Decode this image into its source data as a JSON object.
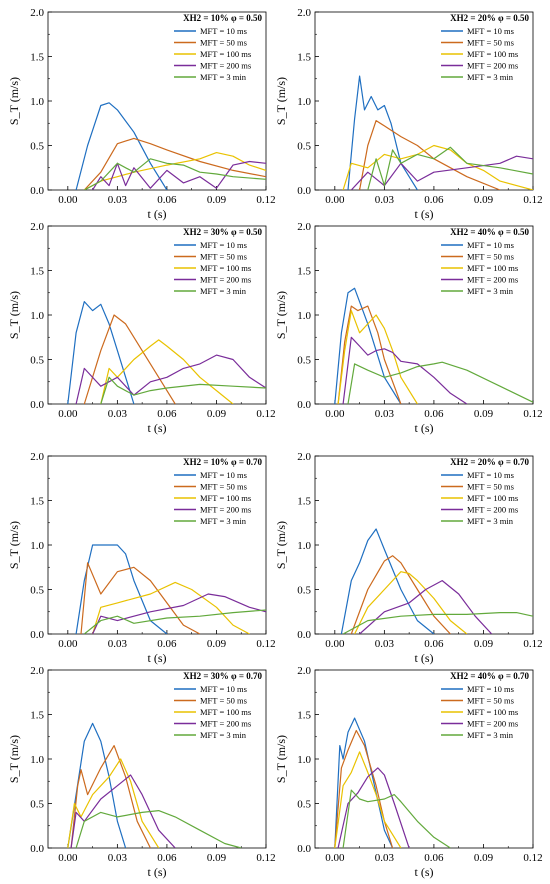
{
  "figure": {
    "xlabel": "t (s)",
    "ylabel": "S_T (m/s)",
    "xticks": [
      "0.00",
      "0.03",
      "0.06",
      "0.09",
      "0.12"
    ],
    "yticks": [
      "0.0",
      "0.5",
      "1.0",
      "1.5",
      "2.0"
    ],
    "legend_labels": [
      "MFT = 10 ms",
      "MFT = 50 ms",
      "MFT = 100 ms",
      "MFT = 200 ms",
      "MFT = 3 min"
    ],
    "colors": [
      "#1f6fc1",
      "#cc6a1e",
      "#e9c200",
      "#7a2d9a",
      "#62a93c"
    ]
  },
  "chart_data": [
    {
      "type": "line",
      "title": "XH2 = 10%   φ = 0.50",
      "xlim": [
        -0.012,
        0.12
      ],
      "ylim": [
        0,
        2
      ],
      "series": [
        {
          "name": "MFT = 10 ms",
          "x": [
            0.005,
            0.012,
            0.02,
            0.025,
            0.03,
            0.04,
            0.05,
            0.06
          ],
          "y": [
            0,
            0.5,
            0.95,
            0.98,
            0.9,
            0.65,
            0.3,
            0.0
          ]
        },
        {
          "name": "MFT = 50 ms",
          "x": [
            0.01,
            0.02,
            0.03,
            0.04,
            0.05,
            0.06,
            0.08,
            0.1,
            0.12
          ],
          "y": [
            0,
            0.2,
            0.52,
            0.58,
            0.52,
            0.45,
            0.32,
            0.22,
            0.15
          ]
        },
        {
          "name": "MFT = 100 ms",
          "x": [
            0.01,
            0.02,
            0.03,
            0.04,
            0.06,
            0.08,
            0.09,
            0.1,
            0.11,
            0.12
          ],
          "y": [
            0,
            0.1,
            0.15,
            0.2,
            0.28,
            0.35,
            0.42,
            0.38,
            0.28,
            0.22
          ]
        },
        {
          "name": "MFT = 200 ms",
          "x": [
            0.015,
            0.02,
            0.025,
            0.03,
            0.035,
            0.04,
            0.05,
            0.06,
            0.07,
            0.08,
            0.09,
            0.1,
            0.11,
            0.12
          ],
          "y": [
            0,
            0.15,
            0.05,
            0.3,
            0.05,
            0.25,
            0.02,
            0.22,
            0.08,
            0.15,
            0.02,
            0.28,
            0.32,
            0.3
          ]
        },
        {
          "name": "MFT = 3 min",
          "x": [
            0.01,
            0.02,
            0.03,
            0.04,
            0.05,
            0.06,
            0.07,
            0.08,
            0.09,
            0.1,
            0.12
          ],
          "y": [
            0,
            0.1,
            0.3,
            0.2,
            0.35,
            0.3,
            0.28,
            0.2,
            0.18,
            0.15,
            0.12
          ]
        }
      ]
    },
    {
      "type": "line",
      "title": "XH2 = 20%   φ = 0.50",
      "xlim": [
        -0.012,
        0.12
      ],
      "ylim": [
        0,
        2
      ],
      "series": [
        {
          "name": "MFT = 10 ms",
          "x": [
            0.008,
            0.012,
            0.015,
            0.018,
            0.022,
            0.026,
            0.03,
            0.034,
            0.04,
            0.05
          ],
          "y": [
            0,
            0.8,
            1.28,
            0.9,
            1.05,
            0.9,
            0.95,
            0.75,
            0.3,
            0.0
          ]
        },
        {
          "name": "MFT = 50 ms",
          "x": [
            0.015,
            0.02,
            0.025,
            0.03,
            0.04,
            0.05,
            0.06,
            0.08,
            0.1
          ],
          "y": [
            0,
            0.5,
            0.78,
            0.72,
            0.6,
            0.5,
            0.35,
            0.15,
            0.0
          ]
        },
        {
          "name": "MFT = 100 ms",
          "x": [
            0.005,
            0.01,
            0.02,
            0.03,
            0.04,
            0.05,
            0.06,
            0.07,
            0.08,
            0.09,
            0.1,
            0.12
          ],
          "y": [
            0,
            0.3,
            0.25,
            0.4,
            0.35,
            0.4,
            0.5,
            0.45,
            0.3,
            0.22,
            0.1,
            0.0
          ]
        },
        {
          "name": "MFT = 200 ms",
          "x": [
            0.01,
            0.02,
            0.03,
            0.04,
            0.05,
            0.06,
            0.08,
            0.1,
            0.11,
            0.12
          ],
          "y": [
            0,
            0.2,
            0.05,
            0.3,
            0.1,
            0.2,
            0.25,
            0.3,
            0.38,
            0.35
          ]
        },
        {
          "name": "MFT = 3 min",
          "x": [
            0.02,
            0.025,
            0.03,
            0.035,
            0.04,
            0.05,
            0.06,
            0.07,
            0.08,
            0.1,
            0.12
          ],
          "y": [
            0,
            0.35,
            0.05,
            0.45,
            0.3,
            0.4,
            0.35,
            0.48,
            0.3,
            0.25,
            0.18
          ]
        }
      ]
    },
    {
      "type": "line",
      "title": "XH2 = 30%   φ = 0.50",
      "xlim": [
        -0.012,
        0.12
      ],
      "ylim": [
        0,
        2
      ],
      "series": [
        {
          "name": "MFT = 10 ms",
          "x": [
            0.0,
            0.005,
            0.01,
            0.015,
            0.02,
            0.025,
            0.03,
            0.04
          ],
          "y": [
            0,
            0.8,
            1.15,
            1.05,
            1.12,
            0.9,
            0.6,
            0.0
          ]
        },
        {
          "name": "MFT = 50 ms",
          "x": [
            0.01,
            0.02,
            0.028,
            0.035,
            0.045,
            0.055,
            0.065
          ],
          "y": [
            0,
            0.6,
            1.0,
            0.9,
            0.6,
            0.3,
            0.0
          ]
        },
        {
          "name": "MFT = 100 ms",
          "x": [
            0.02,
            0.025,
            0.03,
            0.04,
            0.05,
            0.055,
            0.06,
            0.07,
            0.08,
            0.09,
            0.1
          ],
          "y": [
            0,
            0.4,
            0.3,
            0.5,
            0.65,
            0.72,
            0.65,
            0.5,
            0.3,
            0.15,
            0.0
          ]
        },
        {
          "name": "MFT = 200 ms",
          "x": [
            0.005,
            0.01,
            0.02,
            0.03,
            0.04,
            0.05,
            0.06,
            0.07,
            0.08,
            0.09,
            0.1,
            0.11,
            0.12
          ],
          "y": [
            0,
            0.4,
            0.2,
            0.3,
            0.1,
            0.25,
            0.3,
            0.4,
            0.45,
            0.55,
            0.5,
            0.3,
            0.18
          ]
        },
        {
          "name": "MFT = 3 min",
          "x": [
            0.02,
            0.025,
            0.03,
            0.04,
            0.05,
            0.06,
            0.08,
            0.1,
            0.12
          ],
          "y": [
            0,
            0.3,
            0.2,
            0.1,
            0.15,
            0.18,
            0.22,
            0.2,
            0.18
          ]
        }
      ]
    },
    {
      "type": "line",
      "title": "XH2 = 40%   φ = 0.50",
      "xlim": [
        -0.012,
        0.12
      ],
      "ylim": [
        0,
        2
      ],
      "series": [
        {
          "name": "MFT = 10 ms",
          "x": [
            0.0,
            0.004,
            0.008,
            0.012,
            0.016,
            0.02,
            0.025,
            0.03,
            0.04
          ],
          "y": [
            0,
            0.8,
            1.25,
            1.3,
            1.1,
            0.9,
            0.6,
            0.3,
            0.0
          ]
        },
        {
          "name": "MFT = 50 ms",
          "x": [
            0.002,
            0.006,
            0.01,
            0.014,
            0.02,
            0.026,
            0.03,
            0.04
          ],
          "y": [
            0,
            0.7,
            1.1,
            1.05,
            1.1,
            0.8,
            0.5,
            0.0
          ]
        },
        {
          "name": "MFT = 100 ms",
          "x": [
            0.002,
            0.006,
            0.01,
            0.015,
            0.02,
            0.025,
            0.03,
            0.035,
            0.04,
            0.05
          ],
          "y": [
            0,
            0.6,
            1.05,
            0.8,
            0.9,
            1.0,
            0.85,
            0.6,
            0.3,
            0.0
          ]
        },
        {
          "name": "MFT = 200 ms",
          "x": [
            0.005,
            0.01,
            0.015,
            0.02,
            0.025,
            0.03,
            0.035,
            0.04,
            0.05,
            0.06,
            0.07,
            0.08
          ],
          "y": [
            0,
            0.75,
            0.65,
            0.55,
            0.6,
            0.62,
            0.58,
            0.48,
            0.45,
            0.3,
            0.12,
            0.0
          ]
        },
        {
          "name": "MFT = 3 min",
          "x": [
            0.008,
            0.012,
            0.02,
            0.03,
            0.04,
            0.05,
            0.06,
            0.065,
            0.08,
            0.1,
            0.12
          ],
          "y": [
            0,
            0.45,
            0.38,
            0.3,
            0.35,
            0.42,
            0.45,
            0.47,
            0.38,
            0.2,
            0.02
          ]
        }
      ]
    },
    {
      "type": "line",
      "title": "XH2 = 10%   φ = 0.70",
      "xlim": [
        -0.012,
        0.12
      ],
      "ylim": [
        0,
        2
      ],
      "series": [
        {
          "name": "MFT = 10 ms",
          "x": [
            0.005,
            0.01,
            0.015,
            0.02,
            0.03,
            0.035,
            0.04,
            0.05,
            0.06
          ],
          "y": [
            0,
            0.6,
            1.0,
            1.0,
            1.0,
            0.9,
            0.6,
            0.15,
            0.0
          ]
        },
        {
          "name": "MFT = 50 ms",
          "x": [
            0.008,
            0.012,
            0.02,
            0.03,
            0.04,
            0.05,
            0.06,
            0.07,
            0.08
          ],
          "y": [
            0,
            0.8,
            0.45,
            0.7,
            0.75,
            0.6,
            0.35,
            0.1,
            0.0
          ]
        },
        {
          "name": "MFT = 100 ms",
          "x": [
            0.015,
            0.02,
            0.03,
            0.05,
            0.065,
            0.075,
            0.09,
            0.1,
            0.11
          ],
          "y": [
            0,
            0.3,
            0.35,
            0.45,
            0.58,
            0.5,
            0.3,
            0.1,
            0.0
          ]
        },
        {
          "name": "MFT = 200 ms",
          "x": [
            0.015,
            0.02,
            0.03,
            0.05,
            0.07,
            0.085,
            0.095,
            0.11,
            0.12
          ],
          "y": [
            0,
            0.2,
            0.15,
            0.25,
            0.32,
            0.45,
            0.42,
            0.3,
            0.25
          ]
        },
        {
          "name": "MFT = 3 min",
          "x": [
            0.01,
            0.02,
            0.03,
            0.04,
            0.06,
            0.08,
            0.1,
            0.12
          ],
          "y": [
            0,
            0.15,
            0.2,
            0.12,
            0.18,
            0.2,
            0.24,
            0.27
          ]
        }
      ]
    },
    {
      "type": "line",
      "title": "XH2 = 20%   φ = 0.70",
      "xlim": [
        -0.012,
        0.12
      ],
      "ylim": [
        0,
        2
      ],
      "series": [
        {
          "name": "MFT = 10 ms",
          "x": [
            0.004,
            0.01,
            0.015,
            0.02,
            0.025,
            0.03,
            0.04,
            0.05,
            0.06
          ],
          "y": [
            0,
            0.6,
            0.8,
            1.05,
            1.18,
            0.95,
            0.5,
            0.15,
            0.0
          ]
        },
        {
          "name": "MFT = 50 ms",
          "x": [
            0.01,
            0.02,
            0.03,
            0.035,
            0.04,
            0.05,
            0.06,
            0.07
          ],
          "y": [
            0,
            0.5,
            0.82,
            0.88,
            0.8,
            0.5,
            0.2,
            0.0
          ]
        },
        {
          "name": "MFT = 100 ms",
          "x": [
            0.012,
            0.02,
            0.03,
            0.04,
            0.045,
            0.05,
            0.06,
            0.07,
            0.08
          ],
          "y": [
            0,
            0.3,
            0.5,
            0.7,
            0.68,
            0.6,
            0.4,
            0.15,
            0.0
          ]
        },
        {
          "name": "MFT = 200 ms",
          "x": [
            0.015,
            0.03,
            0.045,
            0.055,
            0.065,
            0.075,
            0.085,
            0.095
          ],
          "y": [
            0,
            0.25,
            0.35,
            0.5,
            0.6,
            0.45,
            0.2,
            0.0
          ]
        },
        {
          "name": "MFT = 3 min",
          "x": [
            0.005,
            0.02,
            0.04,
            0.06,
            0.08,
            0.1,
            0.11,
            0.12
          ],
          "y": [
            0,
            0.15,
            0.2,
            0.22,
            0.22,
            0.24,
            0.24,
            0.2
          ]
        }
      ]
    },
    {
      "type": "line",
      "title": "XH2 = 30%   φ = 0.70",
      "xlim": [
        -0.012,
        0.12
      ],
      "ylim": [
        0,
        2
      ],
      "series": [
        {
          "name": "MFT = 10 ms",
          "x": [
            0.0,
            0.005,
            0.01,
            0.015,
            0.02,
            0.025,
            0.03,
            0.035
          ],
          "y": [
            0,
            0.6,
            1.2,
            1.4,
            1.2,
            0.8,
            0.3,
            0.0
          ]
        },
        {
          "name": "MFT = 50 ms",
          "x": [
            0.002,
            0.006,
            0.008,
            0.012,
            0.02,
            0.028,
            0.035,
            0.042,
            0.05
          ],
          "y": [
            0,
            0.7,
            0.88,
            0.6,
            0.9,
            1.15,
            0.8,
            0.3,
            0.0
          ]
        },
        {
          "name": "MFT = 100 ms",
          "x": [
            0.0,
            0.004,
            0.008,
            0.015,
            0.025,
            0.032,
            0.038,
            0.045,
            0.055
          ],
          "y": [
            0,
            0.5,
            0.35,
            0.6,
            0.8,
            1.0,
            0.75,
            0.3,
            0.0
          ]
        },
        {
          "name": "MFT = 200 ms",
          "x": [
            0.002,
            0.005,
            0.01,
            0.02,
            0.03,
            0.038,
            0.045,
            0.055,
            0.065
          ],
          "y": [
            0,
            0.4,
            0.3,
            0.55,
            0.7,
            0.82,
            0.6,
            0.2,
            0.0
          ]
        },
        {
          "name": "MFT = 3 min",
          "x": [
            0.005,
            0.01,
            0.02,
            0.03,
            0.045,
            0.055,
            0.065,
            0.08,
            0.095,
            0.105
          ],
          "y": [
            0,
            0.3,
            0.4,
            0.35,
            0.4,
            0.42,
            0.35,
            0.2,
            0.05,
            0.0
          ]
        }
      ]
    },
    {
      "type": "line",
      "title": "XH2 = 40%   φ = 0.70",
      "xlim": [
        -0.012,
        0.12
      ],
      "ylim": [
        0,
        2
      ],
      "series": [
        {
          "name": "MFT = 10 ms",
          "x": [
            0.0,
            0.003,
            0.005,
            0.008,
            0.012,
            0.018,
            0.024,
            0.03,
            0.035
          ],
          "y": [
            0,
            1.15,
            1.0,
            1.3,
            1.46,
            1.2,
            0.7,
            0.2,
            0.0
          ]
        },
        {
          "name": "MFT = 50 ms",
          "x": [
            0.0,
            0.004,
            0.008,
            0.013,
            0.018,
            0.025,
            0.03,
            0.035
          ],
          "y": [
            0,
            0.9,
            1.1,
            1.32,
            1.15,
            0.7,
            0.3,
            0.0
          ]
        },
        {
          "name": "MFT = 100 ms",
          "x": [
            0.0,
            0.005,
            0.01,
            0.015,
            0.02,
            0.025,
            0.03,
            0.04
          ],
          "y": [
            0,
            0.7,
            0.85,
            1.08,
            0.85,
            0.6,
            0.3,
            0.0
          ]
        },
        {
          "name": "MFT = 200 ms",
          "x": [
            0.002,
            0.008,
            0.014,
            0.02,
            0.026,
            0.03,
            0.036,
            0.045
          ],
          "y": [
            0,
            0.5,
            0.62,
            0.8,
            0.9,
            0.82,
            0.5,
            0.0
          ]
        },
        {
          "name": "MFT = 3 min",
          "x": [
            0.005,
            0.01,
            0.015,
            0.02,
            0.03,
            0.036,
            0.04,
            0.05,
            0.06,
            0.07
          ],
          "y": [
            0,
            0.65,
            0.55,
            0.52,
            0.55,
            0.6,
            0.52,
            0.3,
            0.12,
            0.0
          ]
        }
      ]
    }
  ]
}
